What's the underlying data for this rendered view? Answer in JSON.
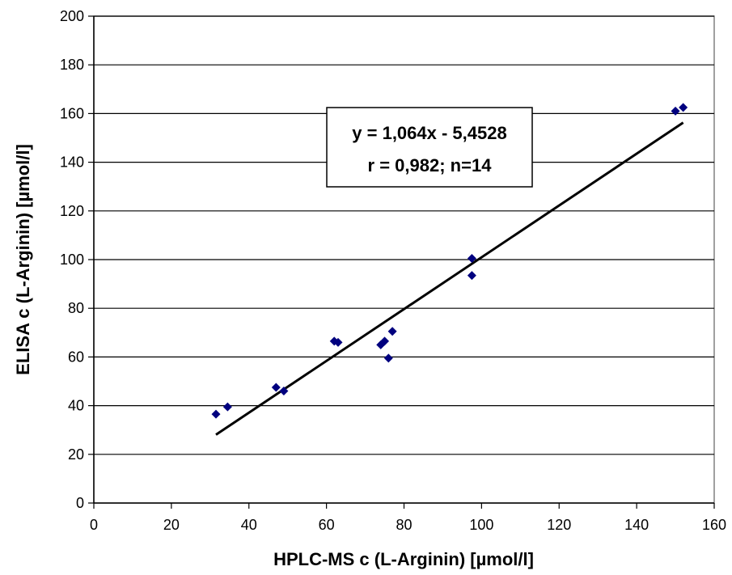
{
  "chart_data": {
    "type": "scatter",
    "xlabel": "HPLC-MS c (L-Arginin) [µmol/l]",
    "ylabel": "ELISA c (L-Arginin) [µmol/l]",
    "xlim": [
      0,
      160
    ],
    "ylim": [
      0,
      200
    ],
    "xticks": [
      0,
      20,
      40,
      60,
      80,
      100,
      120,
      140,
      160
    ],
    "yticks": [
      0,
      20,
      40,
      60,
      80,
      100,
      120,
      140,
      160,
      180,
      200
    ],
    "grid": "horizontal",
    "marker_color": "#00007f",
    "points": [
      {
        "x": 31.5,
        "y": 36.5
      },
      {
        "x": 34.5,
        "y": 39.5
      },
      {
        "x": 47,
        "y": 47.5
      },
      {
        "x": 49,
        "y": 46
      },
      {
        "x": 62,
        "y": 66.5
      },
      {
        "x": 63,
        "y": 66
      },
      {
        "x": 74,
        "y": 65
      },
      {
        "x": 75,
        "y": 66.5
      },
      {
        "x": 76,
        "y": 59.5
      },
      {
        "x": 77,
        "y": 70.5
      },
      {
        "x": 97.5,
        "y": 100.5
      },
      {
        "x": 97.5,
        "y": 93.5
      },
      {
        "x": 150,
        "y": 161
      },
      {
        "x": 152,
        "y": 162.5
      }
    ],
    "trendline": {
      "slope": 1.064,
      "intercept": -5.4528,
      "x_start": 31.5,
      "x_end": 152
    },
    "annotation": {
      "line1": "y = 1,064x - 5,4528",
      "line2": "r = 0,982; n=14"
    }
  }
}
